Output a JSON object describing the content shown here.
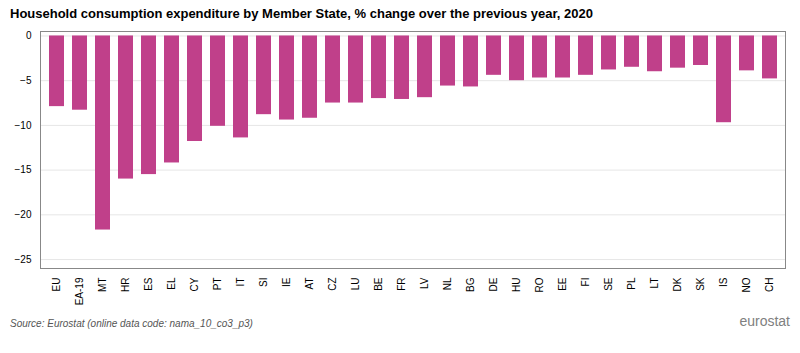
{
  "chart_data": {
    "type": "bar",
    "title": "Household consumption expenditure by Member State, % change over the previous year, 2020",
    "caption": "Source: Eurostat (online data code: nama_10_co3_p3)",
    "annotations": [
      "eurostat"
    ],
    "categories": [
      "EU",
      "EA-19",
      "MT",
      "HR",
      "ES",
      "EL",
      "CY",
      "PT",
      "IT",
      "SI",
      "IE",
      "AT",
      "CZ",
      "LU",
      "BE",
      "FR",
      "LV",
      "NL",
      "BG",
      "DE",
      "HU",
      "RO",
      "EE",
      "FI",
      "SE",
      "PL",
      "LT",
      "DK",
      "SK",
      "IS",
      "NO",
      "CH"
    ],
    "values": [
      -7.9,
      -8.3,
      -21.7,
      -16.0,
      -15.5,
      -14.2,
      -11.8,
      -10.1,
      -11.4,
      -8.8,
      -9.4,
      -9.2,
      -7.5,
      -7.5,
      -7.0,
      -7.1,
      -6.9,
      -5.6,
      -5.7,
      -4.4,
      -5.0,
      -4.7,
      -4.7,
      -4.4,
      -3.8,
      -3.5,
      -4.0,
      -3.6,
      -3.3,
      -9.7,
      -3.9,
      -4.8
    ],
    "color": "#c0408a",
    "ylim": [
      -26,
      0.5
    ],
    "yticks": [
      0,
      -5,
      -10,
      -15,
      -20,
      -25
    ],
    "grid": true
  }
}
